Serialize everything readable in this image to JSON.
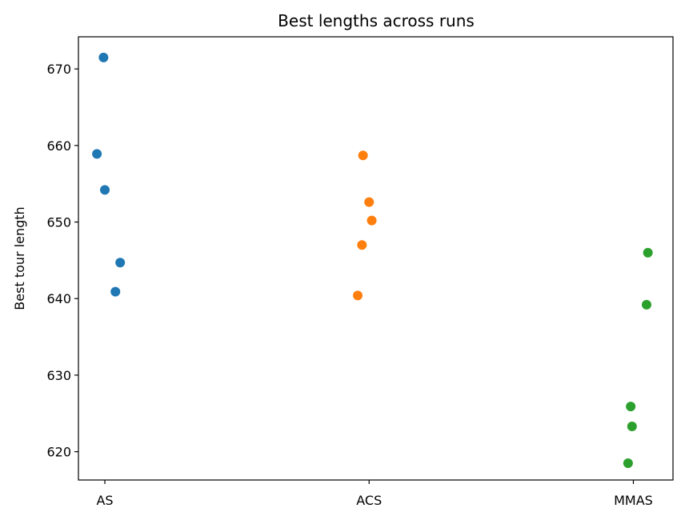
{
  "chart_data": {
    "type": "scatter",
    "title": "Best lengths across runs",
    "xlabel": "",
    "ylabel": "Best tour length",
    "categories": [
      "AS",
      "ACS",
      "MMAS"
    ],
    "ylim": [
      616.3,
      674.2
    ],
    "yticks": [
      620,
      630,
      640,
      650,
      660,
      670
    ],
    "grid": false,
    "legend": "none",
    "series": [
      {
        "color": "#1f77b4",
        "points": [
          {
            "x": -0.03,
            "y": 658.9
          },
          {
            "x": -0.005,
            "y": 671.5
          },
          {
            "x": 0.0,
            "y": 654.2
          },
          {
            "x": 0.04,
            "y": 640.9
          },
          {
            "x": 0.058,
            "y": 644.7
          }
        ]
      },
      {
        "color": "#ff7f0e",
        "points": [
          {
            "x": 0.957,
            "y": 640.4
          },
          {
            "x": 0.973,
            "y": 647.0
          },
          {
            "x": 0.977,
            "y": 658.7
          },
          {
            "x": 1.0,
            "y": 652.6
          },
          {
            "x": 1.01,
            "y": 650.2
          }
        ]
      },
      {
        "color": "#2ca02c",
        "points": [
          {
            "x": 1.98,
            "y": 618.5
          },
          {
            "x": 1.99,
            "y": 625.9
          },
          {
            "x": 1.995,
            "y": 623.3
          },
          {
            "x": 2.05,
            "y": 639.2
          },
          {
            "x": 2.055,
            "y": 646.0
          }
        ]
      }
    ]
  }
}
